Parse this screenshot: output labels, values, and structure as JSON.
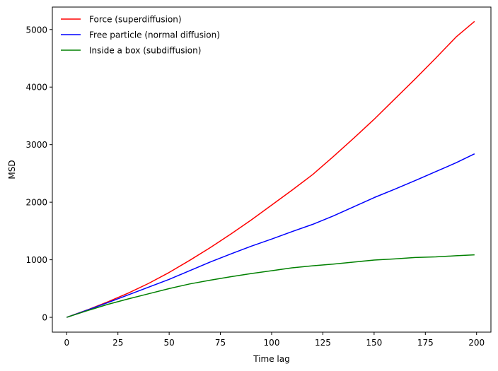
{
  "chart_data": {
    "type": "line",
    "xlabel": "Time lag",
    "ylabel": "MSD",
    "xlim": [
      -7,
      207
    ],
    "ylim": [
      -257,
      5390
    ],
    "xticks": [
      0,
      25,
      50,
      75,
      100,
      125,
      150,
      175,
      200
    ],
    "yticks": [
      0,
      1000,
      2000,
      3000,
      4000,
      5000
    ],
    "grid": false,
    "legend_position": "top-left",
    "series": [
      {
        "name": "Force (superdiffusion)",
        "color": "#ff0000",
        "x": [
          0,
          10,
          20,
          30,
          40,
          50,
          60,
          70,
          80,
          90,
          100,
          110,
          120,
          130,
          140,
          150,
          160,
          170,
          180,
          190,
          199
        ],
        "y": [
          0,
          128,
          268,
          420,
          590,
          780,
          990,
          1210,
          1445,
          1690,
          1950,
          2210,
          2480,
          2790,
          3110,
          3440,
          3790,
          4140,
          4500,
          4870,
          5140
        ]
      },
      {
        "name": "Free particle (normal diffusion)",
        "color": "#0000ff",
        "x": [
          0,
          10,
          20,
          30,
          40,
          50,
          60,
          70,
          80,
          90,
          100,
          110,
          120,
          130,
          140,
          150,
          160,
          170,
          180,
          190,
          199
        ],
        "y": [
          0,
          125,
          255,
          390,
          525,
          660,
          810,
          960,
          1100,
          1235,
          1360,
          1490,
          1615,
          1760,
          1920,
          2080,
          2225,
          2375,
          2530,
          2685,
          2840
        ]
      },
      {
        "name": "Inside a box (subdiffusion)",
        "color": "#008000",
        "x": [
          0,
          10,
          20,
          30,
          40,
          50,
          60,
          70,
          80,
          90,
          100,
          110,
          120,
          130,
          140,
          150,
          160,
          170,
          180,
          190,
          199
        ],
        "y": [
          0,
          115,
          225,
          320,
          410,
          500,
          580,
          645,
          705,
          760,
          810,
          860,
          895,
          925,
          960,
          995,
          1015,
          1040,
          1050,
          1070,
          1085
        ]
      }
    ]
  }
}
